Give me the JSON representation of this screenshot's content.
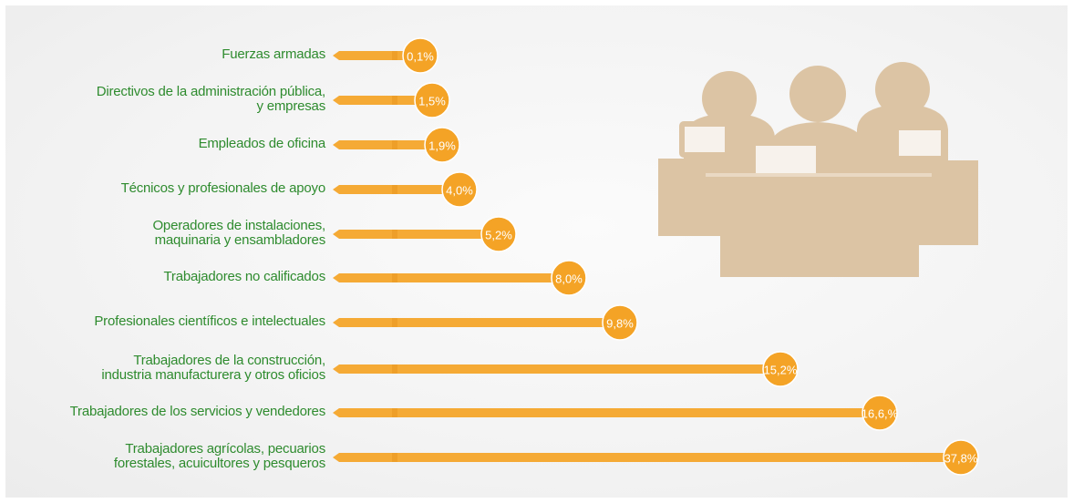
{
  "colors": {
    "bar": "#f5aa35",
    "bar_dark": "#e8951f",
    "bubble": "#f4a326",
    "label": "#2e8b2e",
    "icon": "#dcc4a4"
  },
  "chart_data": {
    "type": "bar",
    "orientation": "horizontal",
    "categories": [
      "Fuerzas armadas",
      "Directivos de la administración pública,\ny empresas",
      "Empleados de oficina",
      "Técnicos y profesionales de apoyo",
      "Operadores de instalaciones,\nmaquinaria y ensambladores",
      "Trabajadores no calificados",
      "Profesionales científicos e intelectuales",
      "Trabajadores de la construcción,\nindustria manufacturera y otros oficios",
      "Trabajadores de los servicios y vendedores",
      "Trabajadores agrícolas, pecuarios\nforestales, acuicultores y pesqueros"
    ],
    "values": [
      0.1,
      1.5,
      1.9,
      4.0,
      5.2,
      8.0,
      9.8,
      15.2,
      16.6,
      37.8
    ],
    "value_labels": [
      "0,1%",
      "1,5%",
      "1,9%",
      "4,0%",
      "5,2%",
      "8,0%",
      "9,8%",
      "15,2%",
      "16,6,%",
      "37,8%"
    ],
    "unit": "%",
    "illustration": "people-at-desks-icon"
  }
}
